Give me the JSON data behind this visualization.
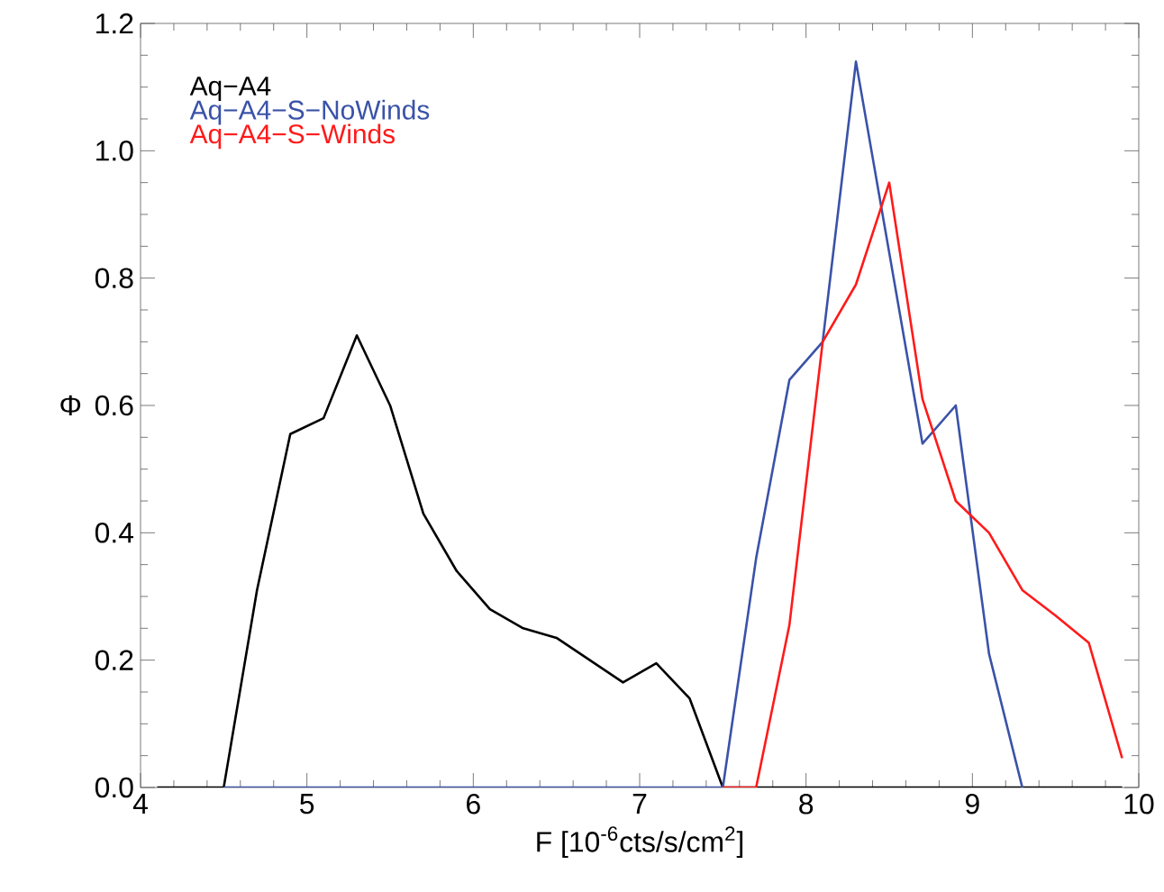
{
  "chart_data": {
    "type": "line",
    "xlabel": "F [10$^{-6}$cts/s/cm$^{2}$]",
    "ylabel": "Φ",
    "series": [
      {
        "name": "Aq−A4",
        "color": "#000000",
        "x": [
          4.1,
          4.3,
          4.5,
          4.7,
          4.9,
          5.1,
          5.3,
          5.5,
          5.7,
          5.9,
          6.1,
          6.3,
          6.5,
          6.7,
          6.9,
          7.1,
          7.3,
          7.5,
          7.7,
          7.9,
          8.1,
          8.3,
          8.5,
          8.7,
          8.9,
          9.1,
          9.3,
          9.5,
          9.7,
          9.9
        ],
        "values": [
          0,
          0,
          0,
          0.31,
          0.555,
          0.58,
          0.71,
          0.6,
          0.43,
          0.34,
          0.28,
          0.25,
          0.235,
          0.2,
          0.165,
          0.195,
          0.14,
          0,
          0,
          0,
          0,
          0,
          0,
          0,
          0,
          0,
          0,
          0,
          0,
          0
        ]
      },
      {
        "name": "Aq−A4−S−NoWinds",
        "color": "#3a52a8",
        "x": [
          4.5,
          4.7,
          4.9,
          5.1,
          5.3,
          5.5,
          5.7,
          5.9,
          6.1,
          6.3,
          6.5,
          6.7,
          6.9,
          7.1,
          7.3,
          7.5,
          7.7,
          7.9,
          8.1,
          8.3,
          8.5,
          8.7,
          8.9,
          9.1,
          9.3
        ],
        "values": [
          0,
          0,
          0,
          0,
          0,
          0,
          0,
          0,
          0,
          0,
          0,
          0,
          0,
          0,
          0,
          0,
          0.36,
          0.64,
          0.7,
          1.14,
          0.84,
          0.54,
          0.6,
          0.21,
          0
        ]
      },
      {
        "name": "Aq−A4−S−Winds",
        "color": "#ff1a1a",
        "x": [
          7.5,
          7.7,
          7.9,
          8.1,
          8.3,
          8.5,
          8.7,
          8.9,
          9.1,
          9.3,
          9.5,
          9.7,
          9.9
        ],
        "values": [
          0,
          0,
          0.255,
          0.7,
          0.79,
          0.95,
          0.61,
          0.45,
          0.4,
          0.31,
          0.27,
          0.227,
          0.046
        ]
      }
    ],
    "xlim": [
      4,
      10
    ],
    "ylim": [
      0,
      1.2
    ],
    "xticks": [
      4,
      5,
      6,
      7,
      8,
      9,
      10
    ],
    "yticks": [
      {
        "value": 0,
        "label": "0.0"
      },
      0.2,
      0.4,
      0.6,
      0.8,
      {
        "value": 1,
        "label": "1.0"
      },
      1.2
    ],
    "legend": "top left",
    "grid": false,
    "marker": "none",
    "line_style": "solid"
  }
}
